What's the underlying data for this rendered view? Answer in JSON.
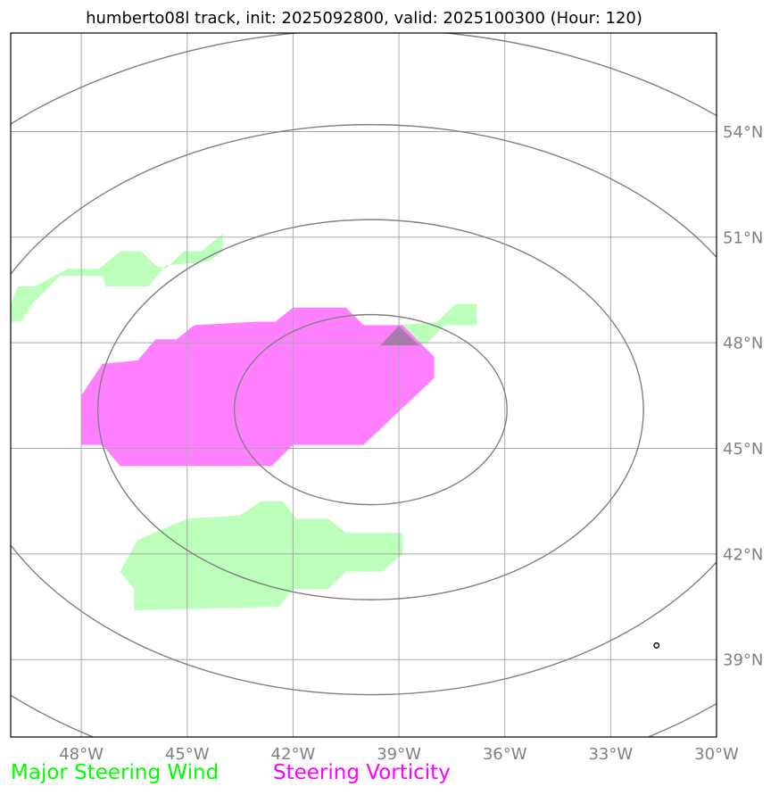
{
  "title": "humberto08l track, init: 2025092800, valid: 2025100300 (Hour: 120)",
  "map": {
    "lon_range": [
      -50,
      -30
    ],
    "lat_range": [
      36.8,
      56.8
    ],
    "lon_ticks": [
      -48,
      -45,
      -42,
      -39,
      -36,
      -33,
      -30
    ],
    "lon_tick_labels": [
      "48°W",
      "45°W",
      "42°W",
      "39°W",
      "36°W",
      "33°W",
      "30°W"
    ],
    "lat_ticks": [
      39,
      42,
      45,
      48,
      51,
      54
    ],
    "lat_tick_labels": [
      "39°N",
      "42°N",
      "45°N",
      "48°N",
      "51°N",
      "54°N"
    ],
    "gridlines": true,
    "range_rings_center": {
      "lon": -39.8,
      "lat": 46.1
    },
    "range_rings_lat_radius_deg": [
      2.7,
      5.4,
      8.1,
      10.8
    ],
    "colors": {
      "steering_wind": "#bbffbb",
      "steering_vorticity": "#ff80ff",
      "ring": "#808080",
      "grid": "#a8a8a8",
      "marker": "#9a7a9e"
    },
    "steering_wind_regions": [
      [
        [
          -50,
          49.1
        ],
        [
          -49.8,
          49.6
        ],
        [
          -49.3,
          49.6
        ],
        [
          -48.4,
          50.1
        ],
        [
          -47.5,
          50.1
        ],
        [
          -46.9,
          50.6
        ],
        [
          -46.3,
          50.6
        ],
        [
          -45.9,
          50.2
        ],
        [
          -45.6,
          50.1
        ],
        [
          -45.1,
          50.6
        ],
        [
          -44.6,
          50.6
        ],
        [
          -44.0,
          51.1
        ],
        [
          -44.0,
          50.6
        ],
        [
          -44.4,
          50.3
        ],
        [
          -45.6,
          50.2
        ],
        [
          -46.1,
          49.6
        ],
        [
          -47.3,
          49.6
        ],
        [
          -47.4,
          49.9
        ],
        [
          -48.6,
          49.9
        ],
        [
          -49.4,
          49.1
        ],
        [
          -49.7,
          48.6
        ],
        [
          -50,
          48.6
        ]
      ],
      [
        [
          -46.4,
          42.4
        ],
        [
          -45.0,
          43.0
        ],
        [
          -43.5,
          43.1
        ],
        [
          -42.9,
          43.5
        ],
        [
          -42.3,
          43.5
        ],
        [
          -41.9,
          43.0
        ],
        [
          -41.0,
          43.0
        ],
        [
          -40.5,
          42.6
        ],
        [
          -38.9,
          42.6
        ],
        [
          -38.9,
          42.0
        ],
        [
          -39.5,
          41.5
        ],
        [
          -40.5,
          41.5
        ],
        [
          -41.0,
          41.0
        ],
        [
          -42.0,
          41.0
        ],
        [
          -42.4,
          40.5
        ],
        [
          -46.5,
          40.4
        ],
        [
          -46.5,
          41.0
        ],
        [
          -46.9,
          41.5
        ]
      ],
      [
        [
          -39.0,
          48.5
        ],
        [
          -37.9,
          48.6
        ],
        [
          -37.4,
          49.1
        ],
        [
          -36.8,
          49.1
        ],
        [
          -36.8,
          48.5
        ],
        [
          -37.7,
          48.5
        ],
        [
          -38.2,
          48.0
        ],
        [
          -38.9,
          47.9
        ]
      ]
    ],
    "steering_vorticity_regions": [
      [
        [
          -48.0,
          46.5
        ],
        [
          -47.4,
          47.4
        ],
        [
          -46.4,
          47.5
        ],
        [
          -45.9,
          48.1
        ],
        [
          -45.3,
          48.1
        ],
        [
          -44.8,
          48.5
        ],
        [
          -43.0,
          48.6
        ],
        [
          -42.5,
          48.6
        ],
        [
          -42.0,
          49.0
        ],
        [
          -40.5,
          49.0
        ],
        [
          -40.0,
          48.5
        ],
        [
          -38.9,
          48.5
        ],
        [
          -38.0,
          47.6
        ],
        [
          -38.0,
          47.0
        ],
        [
          -40.0,
          45.1
        ],
        [
          -42.0,
          45.1
        ],
        [
          -42.6,
          44.5
        ],
        [
          -46.9,
          44.5
        ],
        [
          -47.4,
          45.1
        ],
        [
          -48.0,
          45.1
        ]
      ]
    ],
    "storm_marker": {
      "lon": -39.0,
      "lat": 48.0
    },
    "coast_marker": {
      "lon": -31.7,
      "lat": 39.4
    }
  },
  "legend": {
    "steering_wind_label": "Major Steering Wind",
    "steering_vorticity_label": "Steering Vorticity",
    "steering_wind_color": "#00ff00",
    "steering_vorticity_color": "#ff00ff"
  }
}
